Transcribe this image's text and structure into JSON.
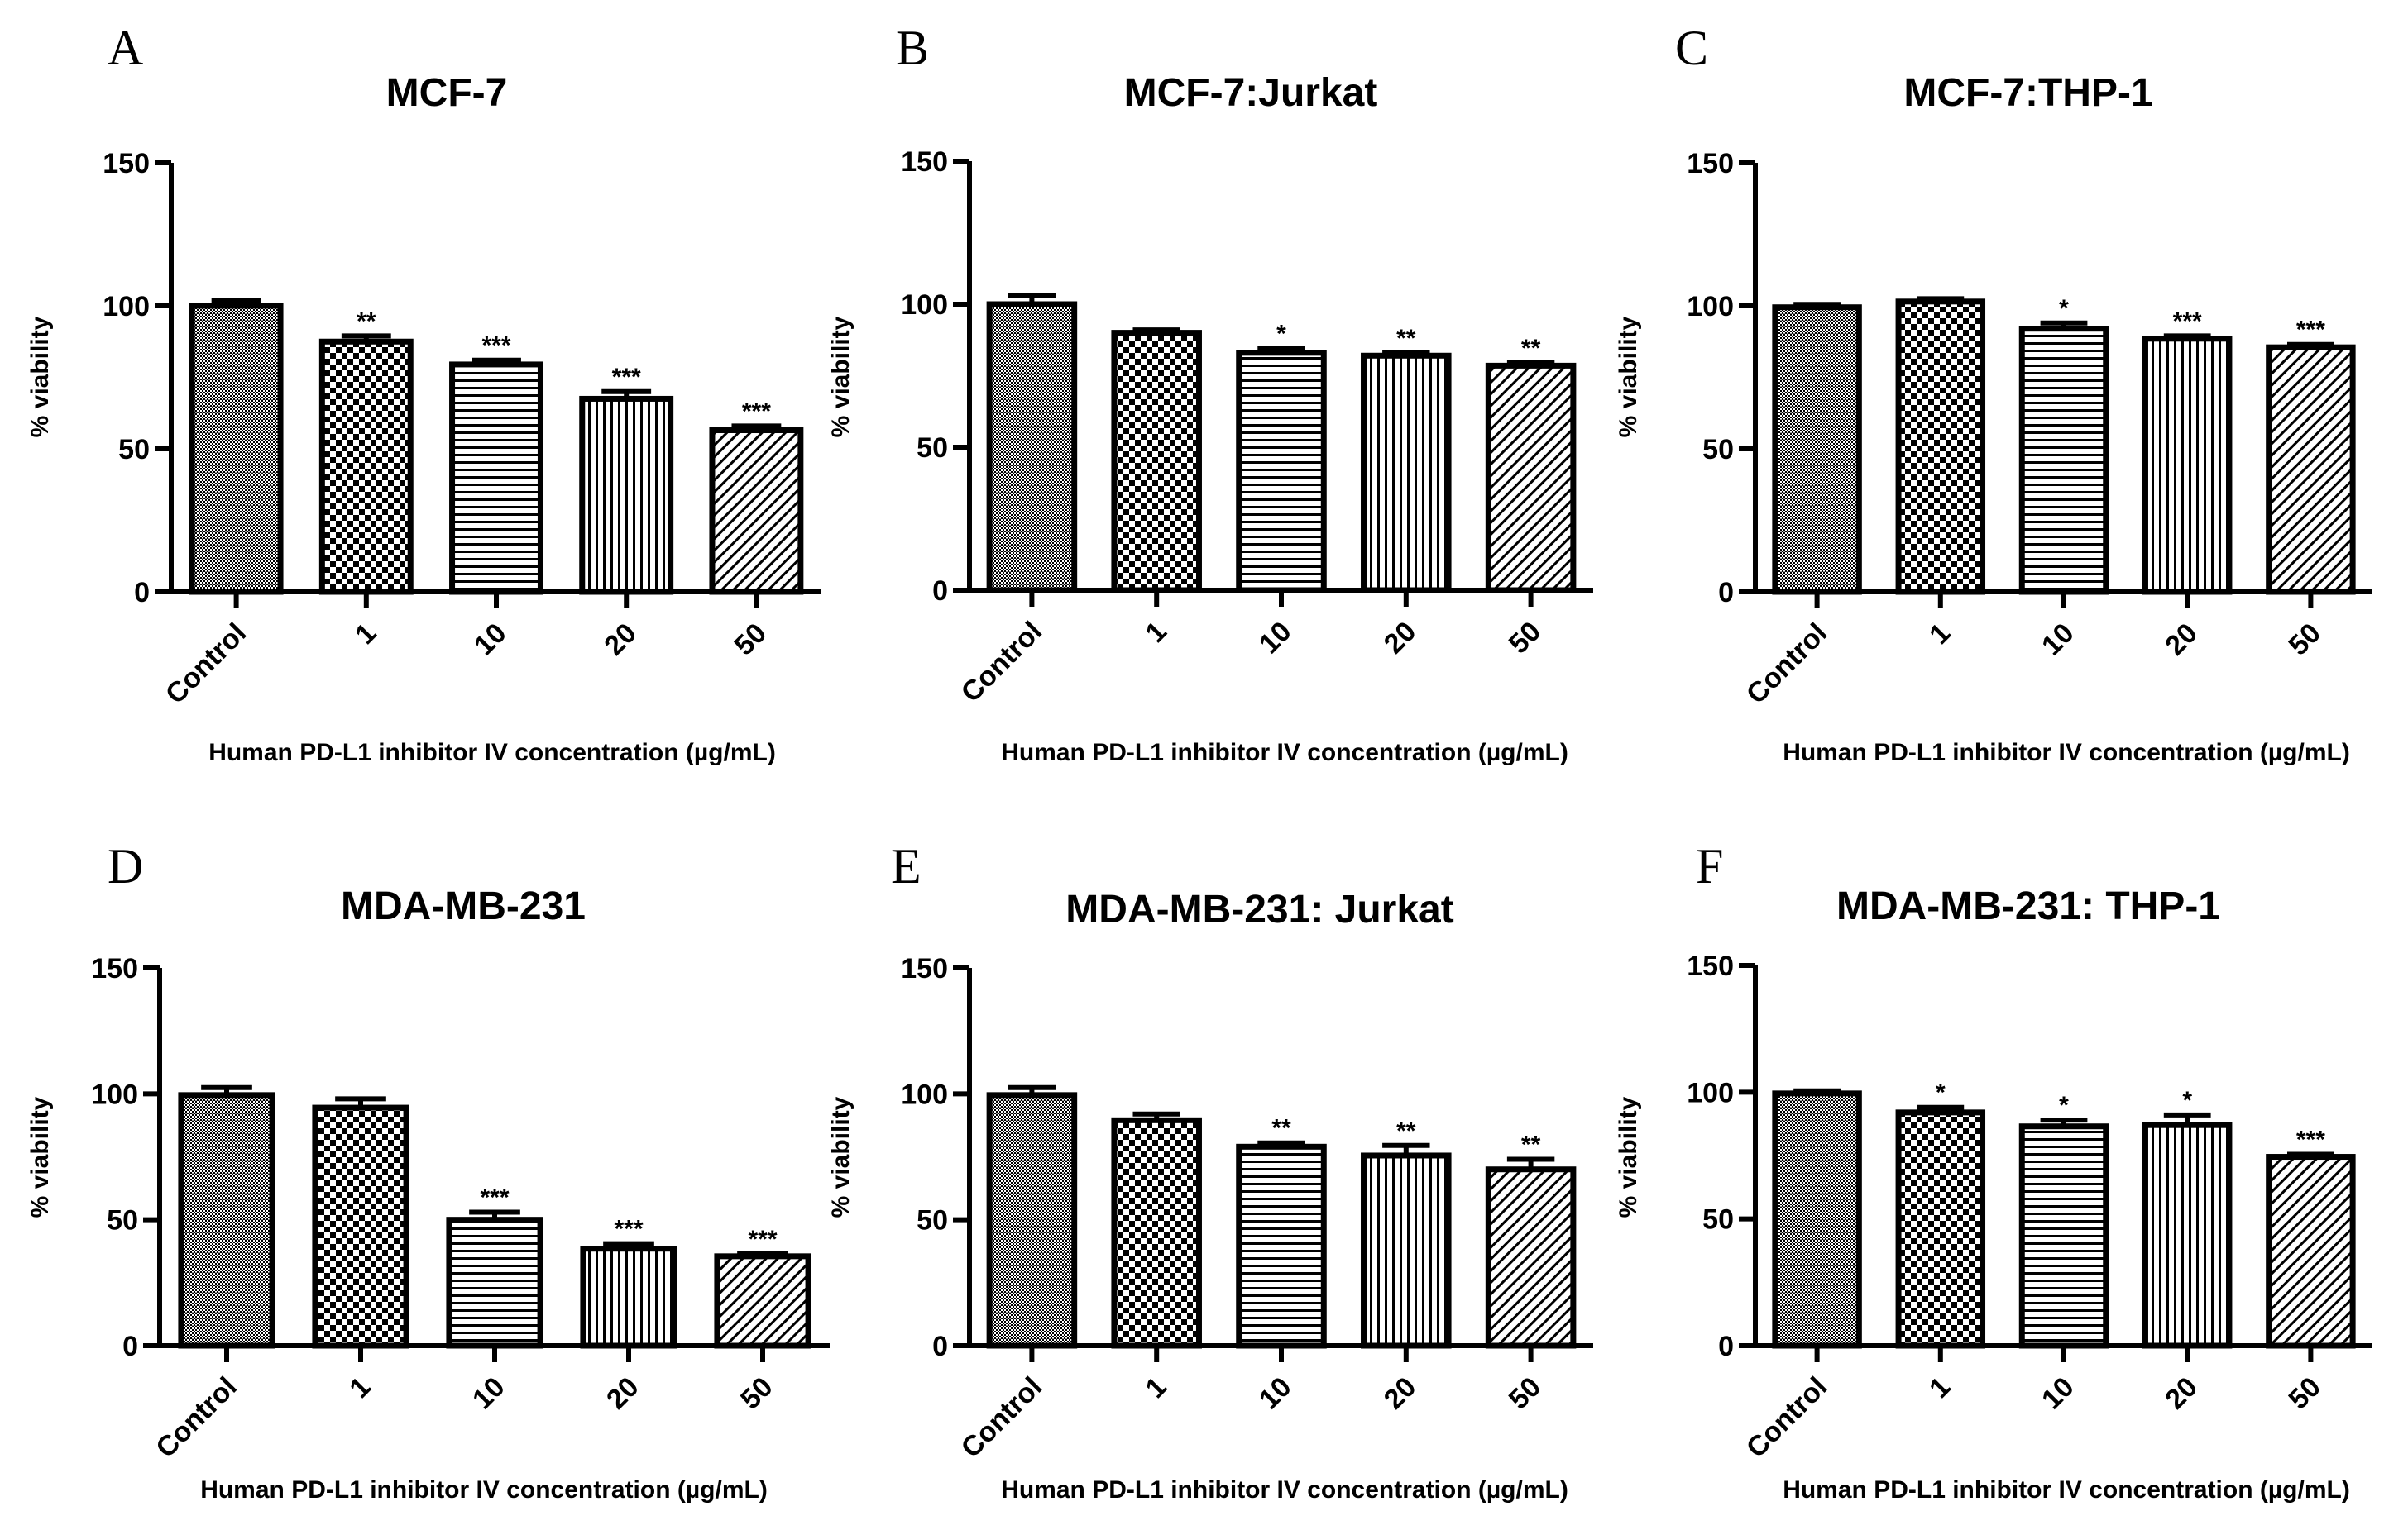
{
  "chart_data": [
    {
      "panel": "A",
      "title": "MCF-7",
      "type": "bar",
      "categories": [
        "Control",
        "1",
        "10",
        "20",
        "50"
      ],
      "values": [
        100,
        87.5,
        79.5,
        67.5,
        56.5
      ],
      "errors": [
        2,
        2,
        1.5,
        2.5,
        1.5
      ],
      "significance": [
        "",
        "**",
        "***",
        "***",
        "***"
      ],
      "ylabel": "% viability",
      "xlabel": "Human PD-L1 inhibitor IV concentration (µg/mL)",
      "ylim": [
        0,
        150
      ],
      "yticks": [
        0,
        50,
        100,
        150
      ]
    },
    {
      "panel": "B",
      "title": "MCF-7:Jurkat",
      "type": "bar",
      "categories": [
        "Control",
        "1",
        "10",
        "20",
        "50"
      ],
      "values": [
        100,
        90,
        83,
        82,
        78.5
      ],
      "errors": [
        3,
        1,
        1.5,
        1,
        1
      ],
      "significance": [
        "",
        "",
        "*",
        "**",
        "**"
      ],
      "ylabel": "% viability",
      "xlabel": "Human PD-L1 inhibitor IV concentration (µg/mL)",
      "ylim": [
        0,
        150
      ],
      "yticks": [
        0,
        50,
        100,
        150
      ]
    },
    {
      "panel": "C",
      "title": "MCF-7:THP-1",
      "type": "bar",
      "categories": [
        "Control",
        "1",
        "10",
        "20",
        "50"
      ],
      "values": [
        99.5,
        101.5,
        92,
        88.5,
        85.5
      ],
      "errors": [
        1,
        1,
        2,
        1,
        1
      ],
      "significance": [
        "",
        "",
        "*",
        "***",
        "***"
      ],
      "ylabel": "% viability",
      "xlabel": "Human PD-L1 inhibitor IV concentration (µg/mL)",
      "ylim": [
        0,
        150
      ],
      "yticks": [
        0,
        50,
        100,
        150
      ]
    },
    {
      "panel": "D",
      "title": "MDA-MB-231",
      "type": "bar",
      "categories": [
        "Control",
        "1",
        "10",
        "20",
        "50"
      ],
      "values": [
        99.5,
        94.5,
        50,
        38.5,
        35.5
      ],
      "errors": [
        3,
        3.5,
        3,
        2,
        1
      ],
      "significance": [
        "",
        "",
        "***",
        "***",
        "***"
      ],
      "ylabel": "% viability",
      "xlabel": "Human PD-L1 inhibitor IV concentration (µg/mL)",
      "ylim": [
        0,
        150
      ],
      "yticks": [
        0,
        50,
        100,
        150
      ]
    },
    {
      "panel": "E",
      "title": "MDA-MB-231: Jurkat",
      "type": "bar",
      "categories": [
        "Control",
        "1",
        "10",
        "20",
        "50"
      ],
      "values": [
        99.5,
        89.5,
        79,
        75.5,
        70
      ],
      "errors": [
        3,
        2.5,
        1.5,
        4,
        4
      ],
      "significance": [
        "",
        "",
        "**",
        "**",
        "**"
      ],
      "ylabel": "% viability",
      "xlabel": "Human PD-L1 inhibitor IV concentration (µg/mL)",
      "ylim": [
        0,
        150
      ],
      "yticks": [
        0,
        50,
        100,
        150
      ]
    },
    {
      "panel": "F",
      "title": "MDA-MB-231: THP-1",
      "type": "bar",
      "categories": [
        "Control",
        "1",
        "10",
        "20",
        "50"
      ],
      "values": [
        99.5,
        92,
        86.5,
        87,
        74.5
      ],
      "errors": [
        1,
        2,
        2.5,
        4,
        1
      ],
      "significance": [
        "",
        "*",
        "*",
        "*",
        "***"
      ],
      "ylabel": "% viability",
      "xlabel": "Human PD-L1 inhibitor IV concentration (µg/mL)",
      "ylim": [
        0,
        150
      ],
      "yticks": [
        0,
        50,
        100,
        150
      ]
    }
  ]
}
